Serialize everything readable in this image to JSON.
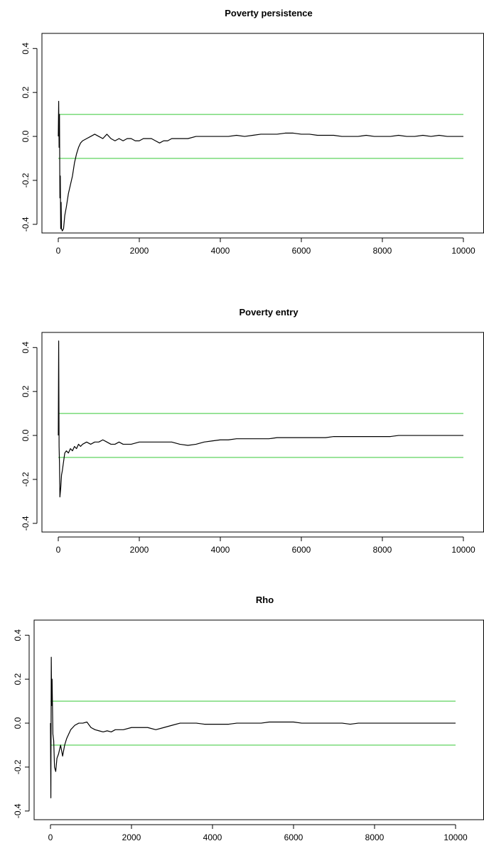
{
  "chart_data": [
    {
      "type": "line",
      "title": "Poverty persistence",
      "xlim": [
        0,
        10000
      ],
      "ylim": [
        -0.42,
        0.43
      ],
      "x_ticks": [
        "0",
        "2000",
        "4000",
        "6000",
        "8000",
        "10000"
      ],
      "y_ticks": [
        "-0.4",
        "-0.2",
        "0.0",
        "0.2",
        "0.4"
      ],
      "reference_lines": {
        "values": [
          0.1,
          -0.1
        ],
        "color": "#5fd35f"
      },
      "series": [
        {
          "color": "#000000",
          "x": [
            0,
            10,
            20,
            30,
            40,
            50,
            60,
            70,
            80,
            100,
            130,
            160,
            200,
            250,
            300,
            350,
            400,
            450,
            500,
            550,
            600,
            700,
            800,
            900,
            1000,
            1100,
            1200,
            1300,
            1400,
            1500,
            1600,
            1700,
            1800,
            1900,
            2000,
            2100,
            2200,
            2300,
            2400,
            2500,
            2600,
            2700,
            2800,
            3000,
            3200,
            3400,
            3600,
            3800,
            4000,
            4200,
            4400,
            4600,
            4800,
            5000,
            5200,
            5400,
            5600,
            5800,
            6000,
            6200,
            6400,
            6600,
            6800,
            7000,
            7200,
            7400,
            7600,
            7800,
            8000,
            8200,
            8400,
            8600,
            8800,
            9000,
            9200,
            9400,
            9600,
            9800,
            10000
          ],
          "y": [
            0.0,
            0.16,
            -0.05,
            0.1,
            -0.28,
            -0.18,
            -0.42,
            -0.3,
            -0.42,
            -0.43,
            -0.42,
            -0.36,
            -0.32,
            -0.26,
            -0.22,
            -0.18,
            -0.12,
            -0.08,
            -0.05,
            -0.03,
            -0.02,
            -0.01,
            0.0,
            0.01,
            0.0,
            -0.01,
            0.01,
            -0.01,
            -0.02,
            -0.01,
            -0.02,
            -0.01,
            -0.01,
            -0.02,
            -0.02,
            -0.01,
            -0.01,
            -0.01,
            -0.02,
            -0.03,
            -0.02,
            -0.02,
            -0.01,
            -0.01,
            -0.01,
            0.0,
            0.0,
            0.0,
            0.0,
            0.0,
            0.005,
            0.0,
            0.005,
            0.01,
            0.01,
            0.01,
            0.015,
            0.015,
            0.01,
            0.01,
            0.005,
            0.005,
            0.005,
            0.0,
            0.0,
            0.0,
            0.005,
            0.0,
            0.0,
            0.0,
            0.005,
            0.0,
            0.0,
            0.005,
            0.0,
            0.005,
            0.0,
            0.0,
            0.0
          ]
        }
      ]
    },
    {
      "type": "line",
      "title": "Poverty entry",
      "xlim": [
        0,
        10000
      ],
      "ylim": [
        -0.42,
        0.43
      ],
      "x_ticks": [
        "0",
        "2000",
        "4000",
        "6000",
        "8000",
        "10000"
      ],
      "y_ticks": [
        "-0.4",
        "-0.2",
        "0.0",
        "0.2",
        "0.4"
      ],
      "reference_lines": {
        "values": [
          0.1,
          -0.1
        ],
        "color": "#5fd35f"
      },
      "series": [
        {
          "color": "#000000",
          "x": [
            0,
            10,
            20,
            30,
            40,
            60,
            80,
            100,
            130,
            160,
            200,
            250,
            300,
            350,
            400,
            450,
            500,
            550,
            600,
            700,
            800,
            900,
            1000,
            1100,
            1200,
            1300,
            1400,
            1500,
            1600,
            1800,
            2000,
            2200,
            2400,
            2600,
            2800,
            3000,
            3200,
            3400,
            3600,
            3800,
            4000,
            4200,
            4400,
            4600,
            4800,
            5000,
            5200,
            5400,
            5600,
            5800,
            6000,
            6200,
            6400,
            6600,
            6800,
            7000,
            7200,
            7400,
            7600,
            7800,
            8000,
            8200,
            8400,
            8600,
            8800,
            9000,
            9200,
            9400,
            9600,
            9800,
            10000
          ],
          "y": [
            0.0,
            0.43,
            -0.05,
            -0.13,
            -0.28,
            -0.24,
            -0.18,
            -0.16,
            -0.12,
            -0.08,
            -0.07,
            -0.08,
            -0.06,
            -0.07,
            -0.05,
            -0.06,
            -0.04,
            -0.05,
            -0.04,
            -0.03,
            -0.04,
            -0.03,
            -0.03,
            -0.02,
            -0.03,
            -0.04,
            -0.04,
            -0.03,
            -0.04,
            -0.04,
            -0.03,
            -0.03,
            -0.03,
            -0.03,
            -0.03,
            -0.04,
            -0.045,
            -0.04,
            -0.03,
            -0.025,
            -0.02,
            -0.02,
            -0.015,
            -0.015,
            -0.015,
            -0.015,
            -0.015,
            -0.01,
            -0.01,
            -0.01,
            -0.01,
            -0.01,
            -0.01,
            -0.01,
            -0.005,
            -0.005,
            -0.005,
            -0.005,
            -0.005,
            -0.005,
            -0.005,
            -0.005,
            0.0,
            0.0,
            0.0,
            0.0,
            0.0,
            0.0,
            0.0,
            0.0,
            0.0
          ]
        }
      ]
    },
    {
      "type": "line",
      "title": "Rho",
      "xlim": [
        0,
        10000
      ],
      "ylim": [
        -0.42,
        0.43
      ],
      "x_ticks": [
        "0",
        "2000",
        "4000",
        "6000",
        "8000",
        "10000"
      ],
      "y_ticks": [
        "-0.4",
        "-0.2",
        "0.0",
        "0.2",
        "0.4"
      ],
      "reference_lines": {
        "values": [
          0.1,
          -0.1
        ],
        "color": "#5fd35f"
      },
      "series": [
        {
          "color": "#000000",
          "x": [
            0,
            10,
            20,
            30,
            40,
            60,
            80,
            100,
            130,
            160,
            200,
            250,
            300,
            350,
            400,
            450,
            500,
            550,
            600,
            700,
            800,
            900,
            1000,
            1100,
            1200,
            1300,
            1400,
            1500,
            1600,
            1800,
            2000,
            2200,
            2400,
            2600,
            2800,
            3000,
            3200,
            3400,
            3600,
            3800,
            4000,
            4200,
            4400,
            4600,
            4800,
            5000,
            5200,
            5400,
            5600,
            5800,
            6000,
            6200,
            6400,
            6600,
            6800,
            7000,
            7200,
            7400,
            7600,
            7800,
            8000,
            8200,
            8400,
            8600,
            8800,
            9000,
            9200,
            9400,
            9600,
            9800,
            10000
          ],
          "y": [
            0.0,
            -0.34,
            0.3,
            0.08,
            0.2,
            -0.05,
            -0.08,
            -0.2,
            -0.22,
            -0.16,
            -0.14,
            -0.1,
            -0.15,
            -0.1,
            -0.07,
            -0.05,
            -0.03,
            -0.02,
            -0.01,
            0.0,
            0.0,
            0.005,
            -0.02,
            -0.03,
            -0.035,
            -0.04,
            -0.035,
            -0.04,
            -0.03,
            -0.03,
            -0.02,
            -0.02,
            -0.02,
            -0.03,
            -0.02,
            -0.01,
            0.0,
            0.0,
            0.0,
            -0.005,
            -0.005,
            -0.005,
            -0.005,
            0.0,
            0.0,
            0.0,
            0.0,
            0.005,
            0.005,
            0.005,
            0.005,
            0.0,
            0.0,
            0.0,
            0.0,
            0.0,
            0.0,
            -0.005,
            0.0,
            0.0,
            0.0,
            0.0,
            0.0,
            0.0,
            0.0,
            0.0,
            0.0,
            0.0,
            0.0,
            0.0,
            0.0
          ]
        }
      ]
    }
  ]
}
